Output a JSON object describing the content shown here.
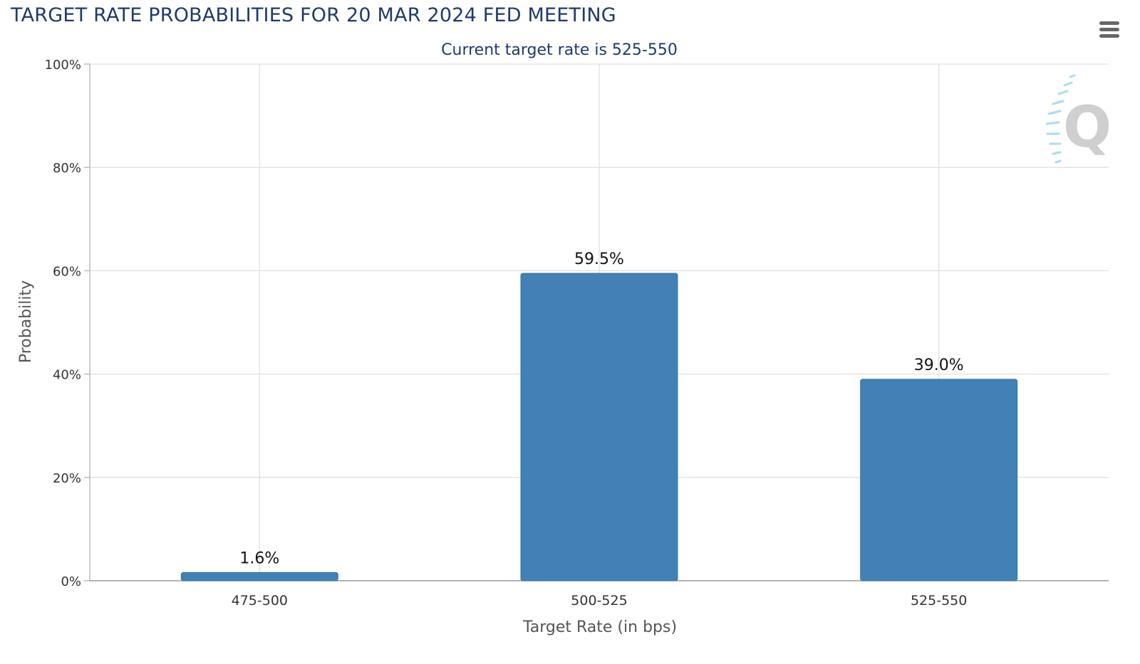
{
  "header": {
    "title": "TARGET RATE PROBABILITIES FOR 20 MAR 2024 FED MEETING",
    "subtitle": "Current target rate is 525-550"
  },
  "toolbar": {
    "menu_icon": "hamburger-menu-icon"
  },
  "watermark": {
    "icon": "quikstrike-q-logo"
  },
  "colors": {
    "bar": "#4380b5",
    "title": "#1f3a6b",
    "grid": "#e0e0e0",
    "axis": "#999999"
  },
  "chart_data": {
    "type": "bar",
    "title": "TARGET RATE PROBABILITIES FOR 20 MAR 2024 FED MEETING",
    "subtitle": "Current target rate is 525-550",
    "xlabel": "Target Rate (in bps)",
    "ylabel": "Probability",
    "categories": [
      "475-500",
      "500-525",
      "525-550"
    ],
    "values": [
      1.6,
      59.5,
      39.0
    ],
    "data_labels": [
      "1.6%",
      "59.5%",
      "39.0%"
    ],
    "ylim": [
      0,
      100
    ],
    "yticks": [
      0,
      20,
      40,
      60,
      80,
      100
    ],
    "ytick_labels": [
      "0%",
      "20%",
      "40%",
      "60%",
      "80%",
      "100%"
    ],
    "grid": true,
    "legend": "none"
  }
}
